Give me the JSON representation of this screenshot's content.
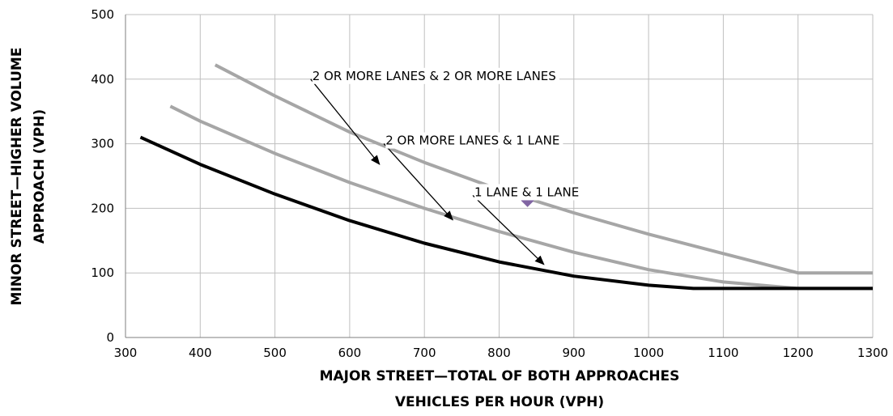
{
  "chart_data": {
    "type": "line",
    "xlabel": [
      "MAJOR STREET—TOTAL OF BOTH APPROACHES",
      "VEHICLES PER HOUR (VPH)"
    ],
    "ylabel": [
      "MINOR STREET—HIGHER VOLUME",
      "APPROACH (VPH)"
    ],
    "xlim": [
      300,
      1300
    ],
    "ylim": [
      0,
      500
    ],
    "xticks": [
      300,
      400,
      500,
      600,
      700,
      800,
      900,
      1000,
      1100,
      1200,
      1300
    ],
    "yticks": [
      0,
      100,
      200,
      300,
      400,
      500
    ],
    "grid": true,
    "series": [
      {
        "name": "2 OR MORE LANES & 2 OR MORE LANES",
        "color": "#a6a6a6",
        "x": [
          420,
          500,
          600,
          700,
          800,
          900,
          1000,
          1100,
          1150,
          1200,
          1300
        ],
        "y": [
          422,
          374,
          318,
          271,
          229,
          193,
          160,
          130,
          115,
          100,
          100
        ]
      },
      {
        "name": "2 OR MORE LANES & 1 LANE",
        "color": "#a6a6a6",
        "x": [
          360,
          400,
          500,
          600,
          700,
          800,
          900,
          1000,
          1100,
          1200,
          1300
        ],
        "y": [
          358,
          335,
          285,
          240,
          200,
          164,
          132,
          105,
          86,
          76,
          76
        ]
      },
      {
        "name": "1 LANE & 1 LANE",
        "color": "#000000",
        "x": [
          320,
          400,
          500,
          600,
          700,
          800,
          900,
          1000,
          1060,
          1100,
          1200,
          1300
        ],
        "y": [
          310,
          268,
          222,
          181,
          146,
          117,
          95,
          81,
          76,
          76,
          76,
          76
        ]
      }
    ],
    "points": [
      {
        "x": 838,
        "y": 212,
        "marker": "diamond",
        "color": "#8064a2"
      }
    ],
    "annotations": [
      {
        "text": "2 OR MORE LANES & 2 OR MORE LANES",
        "text_at": [
          550,
          400
        ],
        "arrow_to": [
          640,
          268
        ]
      },
      {
        "text": "2 OR MORE LANES & 1 LANE",
        "text_at": [
          648,
          300
        ],
        "arrow_to": [
          738,
          182
        ]
      },
      {
        "text": "1 LANE & 1 LANE",
        "text_at": [
          767,
          220
        ],
        "arrow_to": [
          860,
          113
        ]
      }
    ]
  }
}
